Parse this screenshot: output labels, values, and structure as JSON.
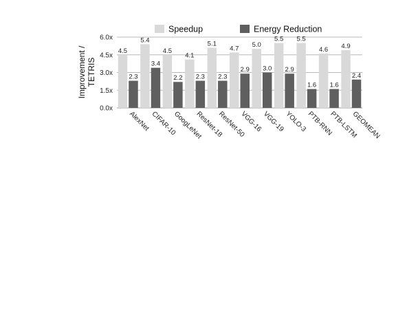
{
  "chart_data": {
    "type": "bar",
    "ylabel": [
      "Improvement /",
      "TETRIS"
    ],
    "ylim": [
      0,
      6
    ],
    "yticks": [
      0,
      1.5,
      3,
      4.5,
      6
    ],
    "ytick_labels": [
      "0.0x",
      "1.5x",
      "3.0x",
      "4.5x",
      "6.0x"
    ],
    "grid": true,
    "legend_position": "top",
    "categories": [
      "AlexNet",
      "CIFAR-10",
      "GoogLeNet",
      "ResNet-18",
      "ResNet-50",
      "VGG-16",
      "VGG-19",
      "YOLO-3",
      "PTB-RNN",
      "PTB-LSTM",
      "GEOMEAN"
    ],
    "series": [
      {
        "name": "Speedup",
        "color": "#d9d9d9",
        "values": [
          4.5,
          5.4,
          4.5,
          4.1,
          5.1,
          4.7,
          5.0,
          5.5,
          5.5,
          4.6,
          4.9
        ],
        "labels": [
          "4.5",
          "5.4",
          "4.5",
          "4.1",
          "5.1",
          "4.7",
          "5.0",
          "5.5",
          "5.5",
          "4.6",
          "4.9"
        ]
      },
      {
        "name": "Energy Reduction",
        "color": "#5f5f5f",
        "values": [
          2.3,
          3.4,
          2.2,
          2.3,
          2.3,
          2.9,
          3.0,
          2.9,
          1.6,
          1.6,
          2.4
        ],
        "labels": [
          "2.3",
          "3.4",
          "2.2",
          "2.3",
          "2.3",
          "2.9",
          "3.0",
          "2.9",
          "1.6",
          "1.6",
          "2.4"
        ]
      }
    ]
  }
}
